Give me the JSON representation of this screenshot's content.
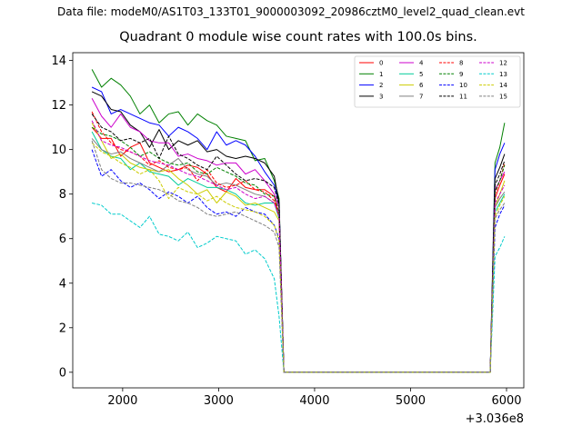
{
  "figure": {
    "suptitle": "Data file: modeM0/AS1T03_133T01_9000003092_20986cztM0_level2_quad_clean.evt"
  },
  "chart_data": {
    "type": "line",
    "title": "Quadrant 0 module wise count rates with 100.0s bins.",
    "xlabel": "",
    "ylabel": "",
    "x_offset_label": "+3.036e8",
    "xlim": [
      1480,
      6180
    ],
    "ylim": [
      -0.7,
      14.35
    ],
    "xticks": [
      2000,
      3000,
      4000,
      5000,
      6000
    ],
    "yticks": [
      0,
      2,
      4,
      6,
      8,
      10,
      12,
      14
    ],
    "grid": false,
    "legend": {
      "location": "top-right",
      "columns": 4
    },
    "x": [
      1680,
      1780,
      1880,
      1980,
      2080,
      2180,
      2280,
      2380,
      2480,
      2580,
      2680,
      2780,
      2880,
      2980,
      3080,
      3180,
      3280,
      3380,
      3480,
      3580,
      3630,
      3680,
      3780,
      3880,
      3980,
      4080,
      4180,
      4280,
      4380,
      4480,
      4580,
      4680,
      4780,
      4880,
      4980,
      5080,
      5180,
      5280,
      5380,
      5480,
      5580,
      5680,
      5780,
      5830,
      5880,
      5930,
      5980
    ],
    "series": [
      {
        "name": "0",
        "color": "#ff0000",
        "dash": "solid",
        "values": [
          11.0,
          10.5,
          10.5,
          9.7,
          10.1,
          10.3,
          9.4,
          9.2,
          9.0,
          9.1,
          9.3,
          9.2,
          8.9,
          8.3,
          8.1,
          8.7,
          8.3,
          8.2,
          8.2,
          7.9,
          7.0,
          0,
          0,
          0,
          0,
          0,
          0,
          0,
          0,
          0,
          0,
          0,
          0,
          0,
          0,
          0,
          0,
          0,
          0,
          0,
          0,
          0,
          0,
          0,
          7.8,
          8.4,
          8.9
        ]
      },
      {
        "name": "1",
        "color": "#008000",
        "dash": "solid",
        "values": [
          13.6,
          12.8,
          13.2,
          12.9,
          12.4,
          11.6,
          12.0,
          11.2,
          11.6,
          11.7,
          11.1,
          11.6,
          11.3,
          11.1,
          10.6,
          10.5,
          10.4,
          9.5,
          9.6,
          8.6,
          7.8,
          0,
          0,
          0,
          0,
          0,
          0,
          0,
          0,
          0,
          0,
          0,
          0,
          0,
          0,
          0,
          0,
          0,
          0,
          0,
          0,
          0,
          0,
          0,
          9.4,
          10.1,
          11.2
        ]
      },
      {
        "name": "2",
        "color": "#0000ff",
        "dash": "solid",
        "values": [
          12.8,
          12.6,
          11.6,
          11.8,
          11.6,
          11.4,
          11.2,
          11.1,
          10.6,
          11.0,
          10.8,
          10.5,
          10.0,
          10.8,
          10.2,
          10.4,
          10.2,
          9.7,
          9.0,
          8.4,
          7.6,
          0,
          0,
          0,
          0,
          0,
          0,
          0,
          0,
          0,
          0,
          0,
          0,
          0,
          0,
          0,
          0,
          0,
          0,
          0,
          0,
          0,
          0,
          0,
          9.1,
          9.8,
          10.3
        ]
      },
      {
        "name": "3",
        "color": "#000000",
        "dash": "solid",
        "values": [
          12.6,
          12.4,
          11.8,
          11.7,
          11.1,
          10.8,
          10.1,
          10.9,
          10.0,
          10.4,
          10.2,
          10.4,
          9.9,
          10.0,
          9.7,
          9.6,
          9.7,
          9.6,
          9.4,
          8.8,
          7.6,
          0,
          0,
          0,
          0,
          0,
          0,
          0,
          0,
          0,
          0,
          0,
          0,
          0,
          0,
          0,
          0,
          0,
          0,
          0,
          0,
          0,
          0,
          0,
          8.7,
          9.2,
          9.8
        ]
      },
      {
        "name": "4",
        "color": "#cc00cc",
        "dash": "solid",
        "values": [
          12.3,
          11.5,
          11.0,
          11.6,
          11.0,
          10.8,
          10.4,
          10.3,
          10.3,
          9.7,
          9.8,
          9.6,
          9.5,
          9.3,
          9.4,
          9.4,
          8.9,
          9.1,
          8.6,
          8.0,
          7.4,
          0,
          0,
          0,
          0,
          0,
          0,
          0,
          0,
          0,
          0,
          0,
          0,
          0,
          0,
          0,
          0,
          0,
          0,
          0,
          0,
          0,
          0,
          0,
          8.2,
          8.6,
          9.0
        ]
      },
      {
        "name": "5",
        "color": "#00cc99",
        "dash": "solid",
        "values": [
          10.8,
          10.0,
          9.7,
          9.6,
          9.1,
          9.4,
          9.0,
          8.9,
          8.8,
          8.4,
          8.7,
          8.5,
          8.3,
          8.3,
          8.2,
          8.0,
          7.6,
          7.5,
          7.6,
          7.6,
          6.9,
          0,
          0,
          0,
          0,
          0,
          0,
          0,
          0,
          0,
          0,
          0,
          0,
          0,
          0,
          0,
          0,
          0,
          0,
          0,
          0,
          0,
          0,
          0,
          7.2,
          7.6,
          8.0
        ]
      },
      {
        "name": "6",
        "color": "#cccc00",
        "dash": "solid",
        "values": [
          11.2,
          10.4,
          9.6,
          9.8,
          9.4,
          9.2,
          9.1,
          9.0,
          9.1,
          8.7,
          8.4,
          8.0,
          8.2,
          7.6,
          8.1,
          7.9,
          7.5,
          7.6,
          7.4,
          7.2,
          6.8,
          0,
          0,
          0,
          0,
          0,
          0,
          0,
          0,
          0,
          0,
          0,
          0,
          0,
          0,
          0,
          0,
          0,
          0,
          0,
          0,
          0,
          0,
          0,
          7.4,
          8.0,
          8.6
        ]
      },
      {
        "name": "7",
        "color": "#808080",
        "dash": "solid",
        "values": [
          10.5,
          10.0,
          9.8,
          9.9,
          9.6,
          9.4,
          9.2,
          9.0,
          9.3,
          9.6,
          9.1,
          8.9,
          8.8,
          8.4,
          8.5,
          8.4,
          8.2,
          8.0,
          7.9,
          7.6,
          7.1,
          0,
          0,
          0,
          0,
          0,
          0,
          0,
          0,
          0,
          0,
          0,
          0,
          0,
          0,
          0,
          0,
          0,
          0,
          0,
          0,
          0,
          0,
          0,
          7.4,
          7.8,
          8.1
        ]
      },
      {
        "name": "8",
        "color": "#ff0000",
        "dash": "dashed",
        "values": [
          11.7,
          10.8,
          10.3,
          10.0,
          9.9,
          9.7,
          9.3,
          9.5,
          9.2,
          9.1,
          9.2,
          8.6,
          9.1,
          8.5,
          8.3,
          8.4,
          8.6,
          8.2,
          8.1,
          7.7,
          7.0,
          0,
          0,
          0,
          0,
          0,
          0,
          0,
          0,
          0,
          0,
          0,
          0,
          0,
          0,
          0,
          0,
          0,
          0,
          0,
          0,
          0,
          0,
          0,
          8.0,
          8.6,
          9.4
        ]
      },
      {
        "name": "9",
        "color": "#008000",
        "dash": "dashed",
        "values": [
          11.0,
          10.7,
          10.6,
          10.4,
          10.1,
          9.7,
          9.9,
          9.6,
          9.4,
          9.3,
          9.4,
          9.0,
          8.9,
          9.2,
          9.0,
          8.8,
          8.5,
          8.4,
          8.0,
          7.9,
          7.2,
          0,
          0,
          0,
          0,
          0,
          0,
          0,
          0,
          0,
          0,
          0,
          0,
          0,
          0,
          0,
          0,
          0,
          0,
          0,
          0,
          0,
          0,
          0,
          8.1,
          8.6,
          9.3
        ]
      },
      {
        "name": "10",
        "color": "#0000ff",
        "dash": "dashed",
        "values": [
          10.0,
          8.8,
          9.1,
          8.6,
          8.3,
          8.5,
          8.2,
          7.8,
          8.1,
          7.9,
          7.6,
          7.9,
          7.4,
          7.1,
          7.2,
          7.0,
          7.4,
          7.2,
          7.1,
          6.6,
          6.0,
          0,
          0,
          0,
          0,
          0,
          0,
          0,
          0,
          0,
          0,
          0,
          0,
          0,
          0,
          0,
          0,
          0,
          0,
          0,
          0,
          0,
          0,
          0,
          6.5,
          7.1,
          7.5
        ]
      },
      {
        "name": "11",
        "color": "#000000",
        "dash": "dashed",
        "values": [
          11.6,
          11.0,
          10.8,
          10.4,
          10.5,
          10.3,
          10.5,
          9.6,
          10.6,
          9.8,
          9.6,
          9.3,
          9.1,
          9.7,
          9.3,
          8.9,
          8.6,
          8.7,
          8.6,
          8.3,
          7.5,
          0,
          0,
          0,
          0,
          0,
          0,
          0,
          0,
          0,
          0,
          0,
          0,
          0,
          0,
          0,
          0,
          0,
          0,
          0,
          0,
          0,
          0,
          0,
          8.4,
          8.9,
          9.5
        ]
      },
      {
        "name": "12",
        "color": "#cc00cc",
        "dash": "dashed",
        "values": [
          11.3,
          10.4,
          10.2,
          10.1,
          9.9,
          9.7,
          9.5,
          9.4,
          9.3,
          9.1,
          8.9,
          8.8,
          8.6,
          8.4,
          8.2,
          8.3,
          8.0,
          7.8,
          7.9,
          7.6,
          7.0,
          0,
          0,
          0,
          0,
          0,
          0,
          0,
          0,
          0,
          0,
          0,
          0,
          0,
          0,
          0,
          0,
          0,
          0,
          0,
          0,
          0,
          0,
          0,
          7.6,
          8.0,
          8.4
        ]
      },
      {
        "name": "13",
        "color": "#00cccc",
        "dash": "dashed",
        "values": [
          7.6,
          7.5,
          7.1,
          7.1,
          6.8,
          6.5,
          7.0,
          6.2,
          6.1,
          5.9,
          6.3,
          5.6,
          5.8,
          6.1,
          6.0,
          5.9,
          5.3,
          5.5,
          5.1,
          4.2,
          2.5,
          0,
          0,
          0,
          0,
          0,
          0,
          0,
          0,
          0,
          0,
          0,
          0,
          0,
          0,
          0,
          0,
          0,
          0,
          0,
          0,
          0,
          0,
          0,
          5.2,
          5.6,
          6.1
        ]
      },
      {
        "name": "14",
        "color": "#cccc00",
        "dash": "dashed",
        "values": [
          10.3,
          9.9,
          9.7,
          9.4,
          9.2,
          8.9,
          9.1,
          8.6,
          7.8,
          8.3,
          8.1,
          8.0,
          7.7,
          7.9,
          7.6,
          7.4,
          7.3,
          7.2,
          7.0,
          6.6,
          5.9,
          0,
          0,
          0,
          0,
          0,
          0,
          0,
          0,
          0,
          0,
          0,
          0,
          0,
          0,
          0,
          0,
          0,
          0,
          0,
          0,
          0,
          0,
          0,
          7.0,
          7.5,
          7.9
        ]
      },
      {
        "name": "15",
        "color": "#808080",
        "dash": "dashed",
        "values": [
          10.4,
          9.1,
          8.7,
          8.5,
          8.5,
          8.4,
          8.3,
          8.2,
          8.0,
          7.7,
          7.6,
          7.4,
          7.1,
          7.0,
          7.1,
          7.2,
          7.0,
          6.8,
          6.6,
          6.3,
          5.6,
          0,
          0,
          0,
          0,
          0,
          0,
          0,
          0,
          0,
          0,
          0,
          0,
          0,
          0,
          0,
          0,
          0,
          0,
          0,
          0,
          0,
          0,
          0,
          6.9,
          7.3,
          7.6
        ]
      }
    ]
  }
}
